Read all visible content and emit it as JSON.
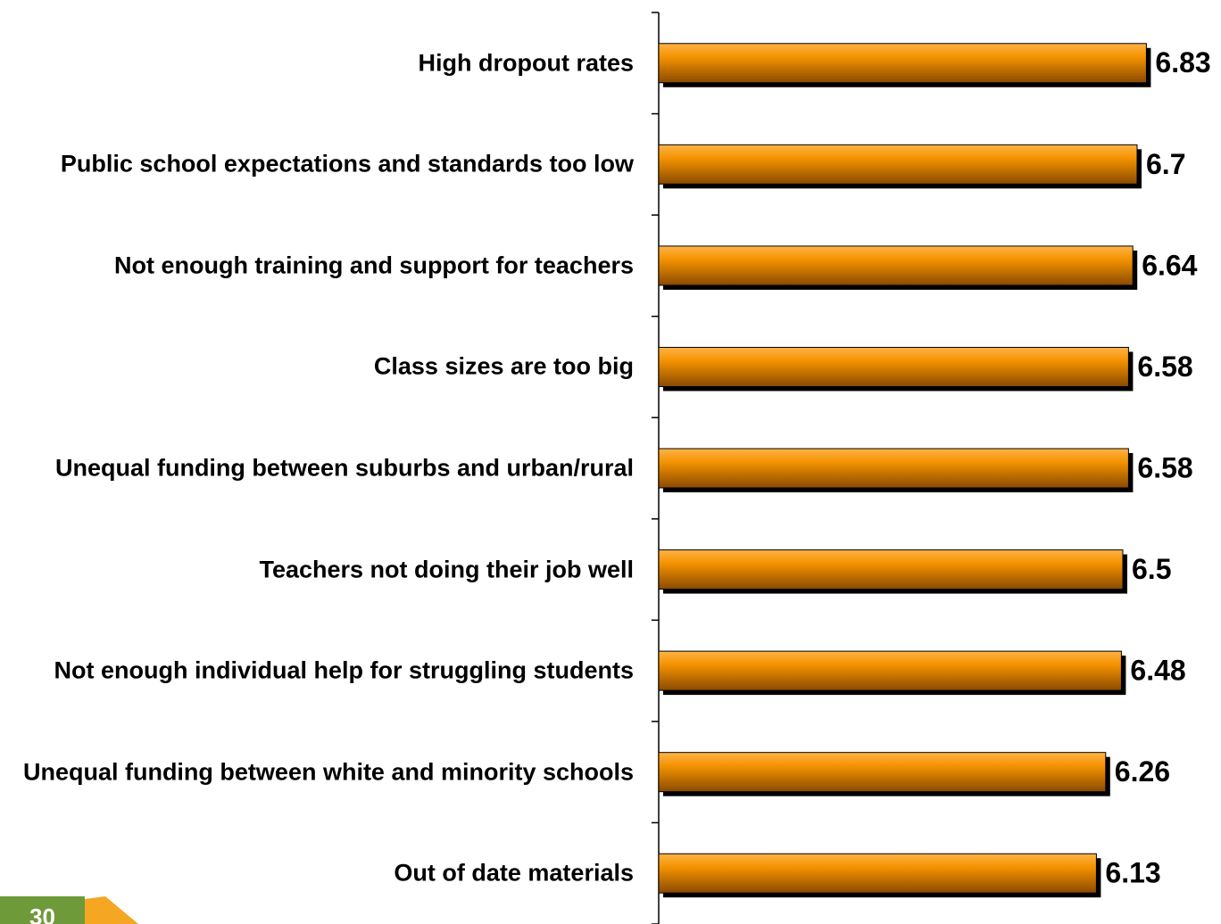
{
  "chart_data": {
    "type": "bar",
    "orientation": "horizontal",
    "categories": [
      "High dropout rates",
      "Public school expectations and standards too low",
      "Not enough training and support for teachers",
      "Class sizes are too big",
      "Unequal funding between suburbs and urban/rural",
      "Teachers not doing their job well",
      "Not enough individual help for struggling students",
      "Unequal funding between white and minority schools",
      "Out of date materials"
    ],
    "values": [
      6.83,
      6.7,
      6.64,
      6.58,
      6.58,
      6.5,
      6.48,
      6.26,
      6.13
    ],
    "color": "#f39200",
    "xlim": [
      0,
      7.8
    ]
  },
  "page_number": "30"
}
